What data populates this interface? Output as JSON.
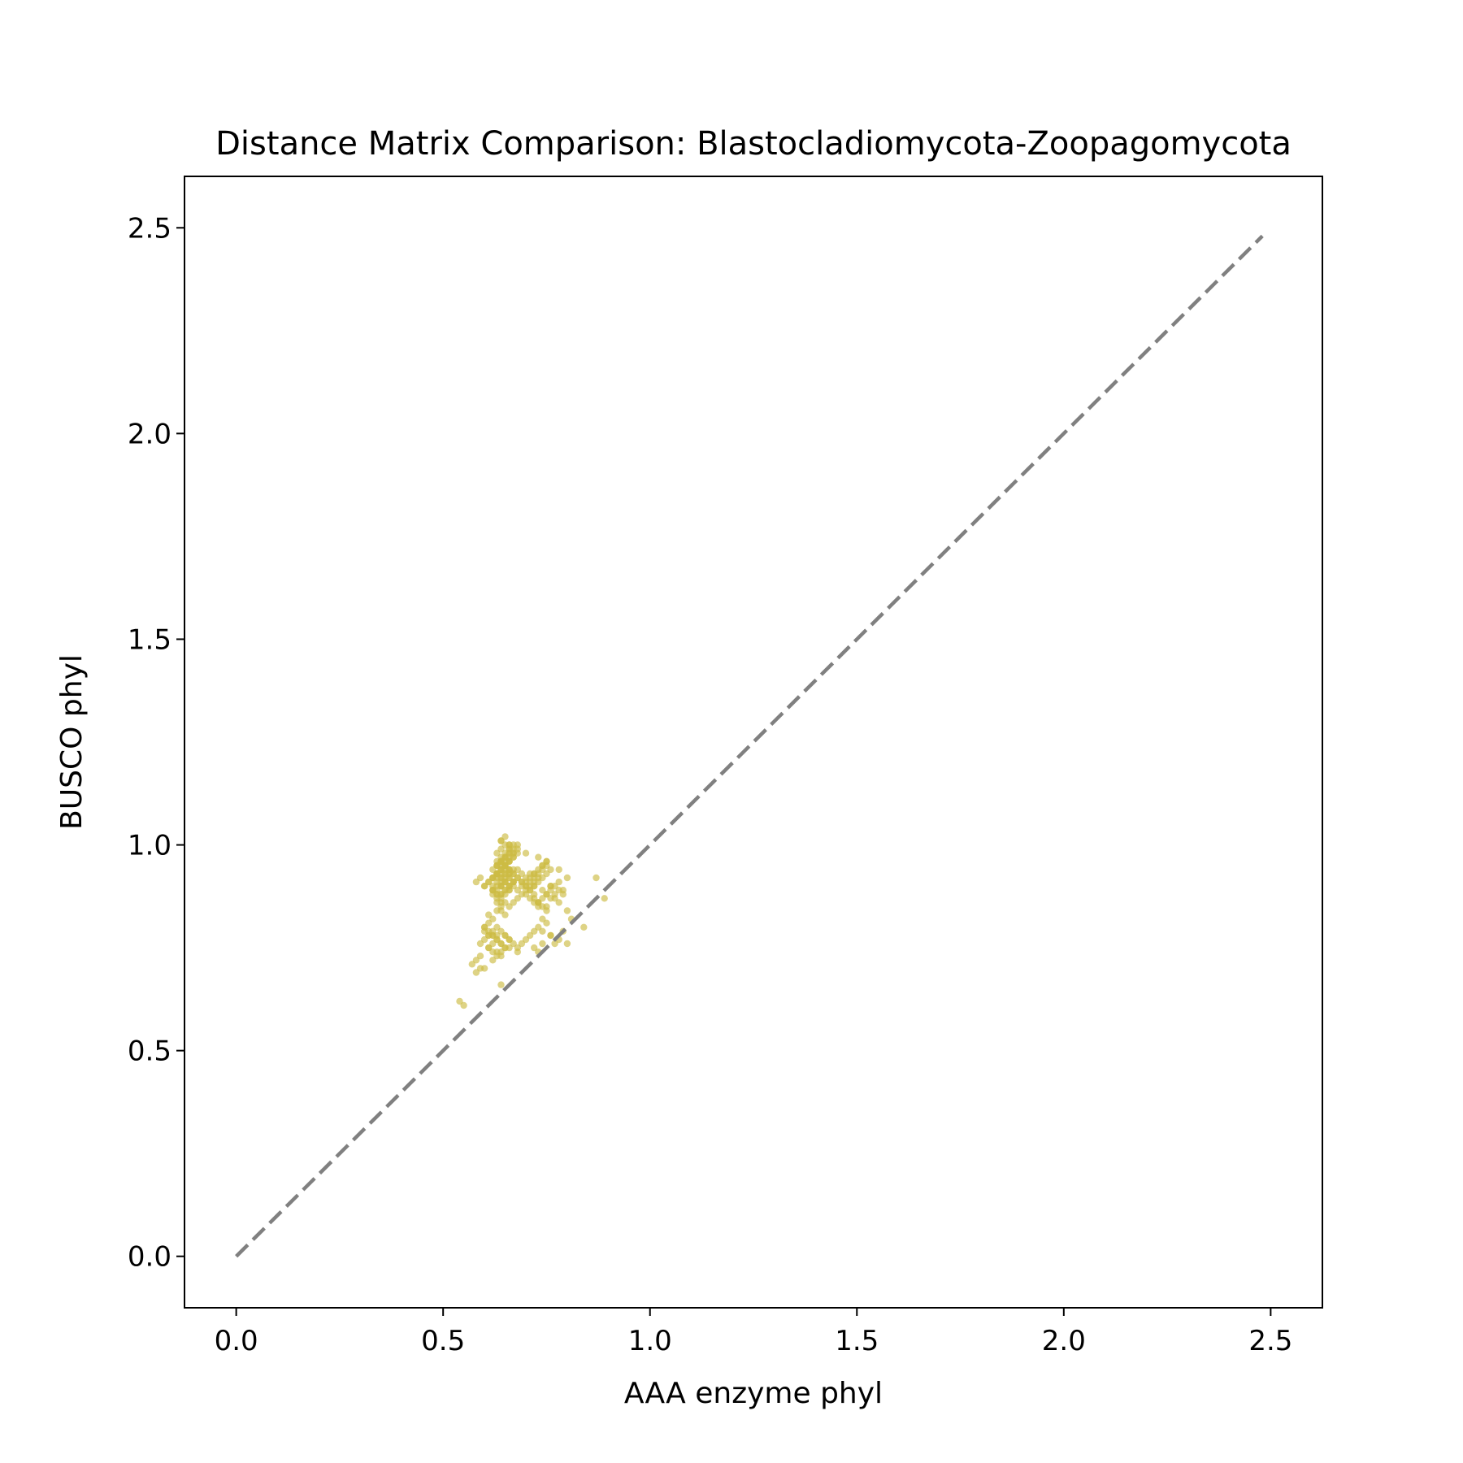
{
  "chart_data": {
    "type": "scatter",
    "title": "Distance Matrix Comparison: Blastocladiomycota-Zoopagomycota",
    "xlabel": "AAA enzyme phyl",
    "ylabel": "BUSCO phyl",
    "xlim": [
      -0.125,
      2.625
    ],
    "ylim": [
      -0.125,
      2.625
    ],
    "xticks": [
      0.0,
      0.5,
      1.0,
      1.5,
      2.0,
      2.5
    ],
    "yticks": [
      0.0,
      0.5,
      1.0,
      1.5,
      2.0,
      2.5
    ],
    "xtick_labels": [
      "0.0",
      "0.5",
      "1.0",
      "1.5",
      "2.0",
      "2.5"
    ],
    "ytick_labels": [
      "0.0",
      "0.5",
      "1.0",
      "1.5",
      "2.0",
      "2.5"
    ],
    "grid": false,
    "point_color": "#ccbb44",
    "point_alpha": 0.65,
    "reference_line": {
      "x": [
        0.0,
        2.48
      ],
      "y": [
        0.0,
        2.48
      ],
      "style": "dashed",
      "color": "#808080"
    },
    "series": [
      {
        "x": [
          0.54,
          0.55,
          0.58,
          0.59,
          0.57,
          0.6,
          0.58,
          0.59,
          0.61,
          0.6,
          0.62,
          0.61,
          0.63,
          0.64,
          0.62,
          0.6,
          0.61,
          0.63,
          0.62,
          0.64,
          0.65,
          0.63,
          0.66,
          0.62,
          0.61,
          0.63,
          0.64,
          0.6,
          0.62,
          0.63,
          0.61,
          0.65,
          0.64,
          0.62,
          0.63,
          0.64,
          0.65,
          0.66,
          0.63,
          0.64,
          0.65,
          0.66,
          0.67,
          0.62,
          0.63,
          0.64,
          0.65,
          0.66,
          0.64,
          0.65,
          0.66,
          0.63,
          0.64,
          0.65,
          0.66,
          0.67,
          0.62,
          0.63,
          0.64,
          0.65,
          0.63,
          0.64,
          0.65,
          0.66,
          0.67,
          0.62,
          0.63,
          0.64,
          0.65,
          0.66,
          0.63,
          0.64,
          0.65,
          0.66,
          0.64,
          0.65,
          0.63,
          0.64,
          0.65,
          0.66,
          0.67,
          0.64,
          0.65,
          0.66,
          0.62,
          0.63,
          0.64,
          0.65,
          0.66,
          0.67,
          0.64,
          0.65,
          0.66,
          0.63,
          0.64,
          0.65,
          0.66,
          0.64,
          0.65,
          0.63,
          0.66,
          0.67,
          0.64,
          0.65,
          0.62,
          0.63,
          0.64,
          0.65,
          0.66,
          0.67,
          0.68,
          0.64,
          0.65,
          0.66,
          0.67,
          0.68,
          0.63,
          0.64,
          0.65,
          0.66,
          0.67,
          0.68,
          0.64,
          0.65,
          0.66,
          0.67,
          0.68,
          0.69,
          0.7,
          0.71,
          0.72,
          0.73,
          0.74,
          0.75,
          0.68,
          0.69,
          0.7,
          0.71,
          0.72,
          0.73,
          0.74,
          0.75,
          0.76,
          0.7,
          0.71,
          0.72,
          0.73,
          0.74,
          0.75,
          0.76,
          0.77,
          0.78,
          0.69,
          0.7,
          0.71,
          0.72,
          0.73,
          0.74,
          0.75,
          0.76,
          0.77,
          0.78,
          0.79,
          0.8,
          0.71,
          0.72,
          0.73,
          0.74,
          0.75,
          0.76,
          0.77,
          0.72,
          0.73,
          0.74,
          0.75,
          0.66,
          0.67,
          0.68,
          0.69,
          0.7,
          0.71,
          0.72,
          0.73,
          0.63,
          0.64,
          0.65,
          0.66,
          0.67,
          0.68,
          0.61,
          0.62,
          0.63,
          0.64,
          0.65,
          0.6,
          0.61,
          0.59,
          0.62,
          0.64,
          0.66,
          0.7,
          0.72,
          0.68,
          0.69,
          0.71,
          0.73,
          0.74,
          0.75,
          0.76,
          0.77,
          0.78,
          0.79,
          0.8,
          0.81,
          0.78,
          0.8,
          0.84,
          0.87,
          0.89,
          0.79,
          0.78,
          0.75,
          0.73,
          0.72,
          0.76,
          0.74,
          0.7,
          0.68,
          0.66,
          0.64,
          0.65,
          0.66,
          0.67,
          0.58,
          0.59,
          0.6,
          0.61,
          0.62,
          0.63,
          0.64,
          0.65,
          0.66,
          0.67,
          0.72,
          0.73,
          0.74,
          0.76,
          0.74,
          0.75,
          0.73,
          0.72,
          0.71,
          0.7,
          0.69,
          0.68,
          0.67,
          0.66,
          0.65,
          0.64,
          0.63,
          0.62,
          0.61,
          0.6,
          0.62,
          0.63
        ],
        "y": [
          0.62,
          0.61,
          0.69,
          0.7,
          0.71,
          0.7,
          0.72,
          0.73,
          0.75,
          0.77,
          0.76,
          0.78,
          0.77,
          0.74,
          0.79,
          0.8,
          0.75,
          0.73,
          0.72,
          0.76,
          0.78,
          0.8,
          0.77,
          0.82,
          0.83,
          0.84,
          0.86,
          0.79,
          0.78,
          0.74,
          0.81,
          0.75,
          0.66,
          0.88,
          0.89,
          0.9,
          0.91,
          0.92,
          0.93,
          0.94,
          0.95,
          0.96,
          0.97,
          0.9,
          0.91,
          0.92,
          0.93,
          0.94,
          0.95,
          0.96,
          0.97,
          0.98,
          0.99,
          1.0,
          0.99,
          0.98,
          0.94,
          0.95,
          0.96,
          0.97,
          0.87,
          0.88,
          0.89,
          0.9,
          0.91,
          0.92,
          0.93,
          0.94,
          0.95,
          0.96,
          0.86,
          0.87,
          0.88,
          0.89,
          0.85,
          0.86,
          0.96,
          0.97,
          0.98,
          0.99,
          1.0,
          1.01,
          1.02,
          1.0,
          0.89,
          0.9,
          0.91,
          0.92,
          0.93,
          0.94,
          0.92,
          0.93,
          0.94,
          0.95,
          0.96,
          0.97,
          0.98,
          0.9,
          0.91,
          0.88,
          0.89,
          0.9,
          0.84,
          0.83,
          0.92,
          0.93,
          0.94,
          0.95,
          0.96,
          0.97,
          0.98,
          0.9,
          0.91,
          0.92,
          0.93,
          0.94,
          0.95,
          0.96,
          0.97,
          0.98,
          0.99,
          1.0,
          0.88,
          0.89,
          0.9,
          0.91,
          0.92,
          0.93,
          0.9,
          0.91,
          0.92,
          0.93,
          0.94,
          0.95,
          0.89,
          0.9,
          0.91,
          0.92,
          0.93,
          0.94,
          0.95,
          0.96,
          0.9,
          0.88,
          0.89,
          0.9,
          0.91,
          0.92,
          0.93,
          0.94,
          0.88,
          0.89,
          0.91,
          0.92,
          0.9,
          0.91,
          0.92,
          0.89,
          0.88,
          0.87,
          0.9,
          0.91,
          0.89,
          0.92,
          0.93,
          0.87,
          0.86,
          0.85,
          0.88,
          0.89,
          0.87,
          0.9,
          0.86,
          0.87,
          0.85,
          0.85,
          0.86,
          0.87,
          0.88,
          0.89,
          0.87,
          0.86,
          0.85,
          0.78,
          0.79,
          0.78,
          0.77,
          0.76,
          0.75,
          0.79,
          0.78,
          0.77,
          0.76,
          0.75,
          0.8,
          0.78,
          0.76,
          0.74,
          0.73,
          0.75,
          0.77,
          0.79,
          0.74,
          0.76,
          0.78,
          0.8,
          0.79,
          0.81,
          0.78,
          0.76,
          0.77,
          0.79,
          0.84,
          0.82,
          0.86,
          0.76,
          0.8,
          0.92,
          0.87,
          0.88,
          0.94,
          0.96,
          0.97,
          0.93,
          0.9,
          0.95,
          0.98,
          0.99,
          1.0,
          1.01,
          0.95,
          0.93,
          0.98,
          0.91,
          0.92,
          0.9,
          0.91,
          0.89,
          0.92,
          0.93,
          0.94,
          0.9,
          0.91,
          0.75,
          0.74,
          0.76,
          0.78,
          0.82,
          0.84,
          0.86,
          0.88,
          0.89,
          0.9,
          0.91,
          0.92,
          0.93,
          0.94,
          0.95,
          0.96,
          0.93,
          0.92,
          0.91,
          0.9,
          0.89,
          0.88
        ]
      }
    ]
  }
}
